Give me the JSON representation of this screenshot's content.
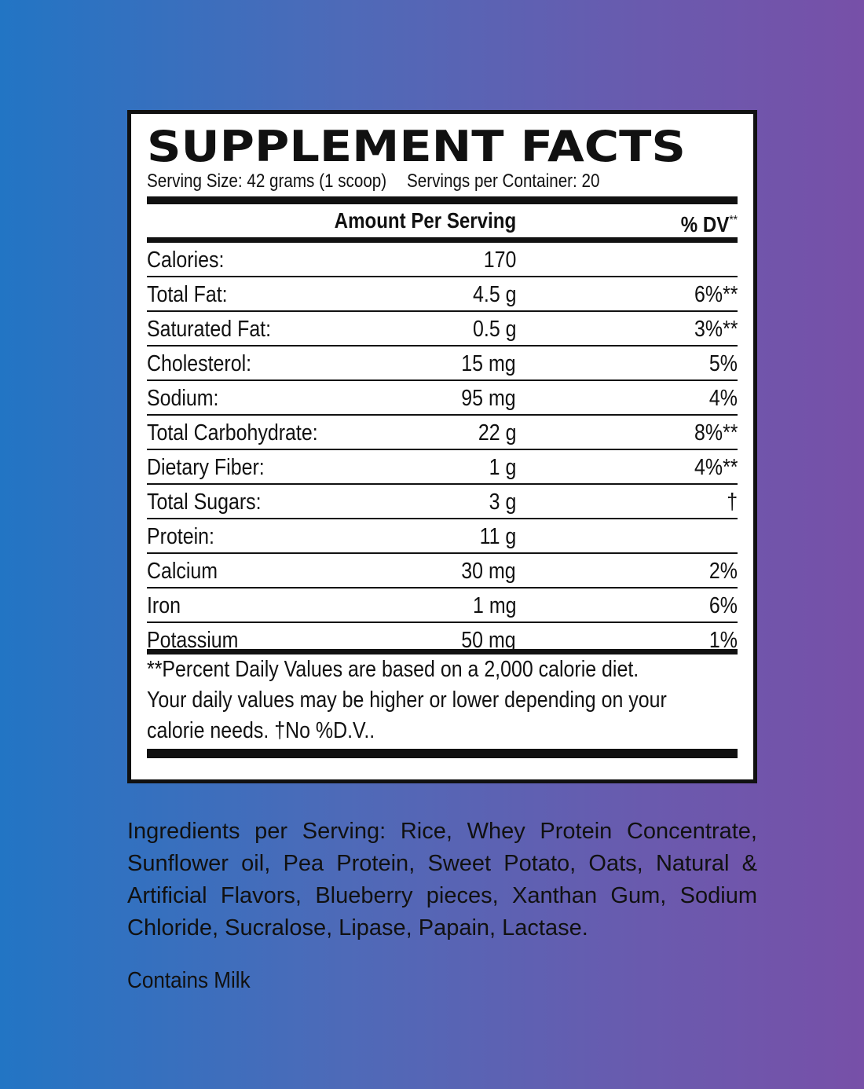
{
  "label": {
    "title": "SUPPLEMENT FACTS",
    "serving_size": "Serving Size: 42 grams (1 scoop)",
    "servings_per_container": "Servings per Container: 20",
    "header_amount": "Amount Per Serving",
    "header_dv": "% DV",
    "header_dv_mark": "**",
    "rows": [
      {
        "name": "Calories:",
        "amount": "170",
        "dv": ""
      },
      {
        "name": "Total Fat:",
        "amount": "4.5 g",
        "dv": "6%**"
      },
      {
        "name": "Saturated Fat:",
        "amount": "0.5 g",
        "dv": "3%**"
      },
      {
        "name": "Cholesterol:",
        "amount": "15 mg",
        "dv": "5%"
      },
      {
        "name": "Sodium:",
        "amount": "95 mg",
        "dv": "4%"
      },
      {
        "name": "Total Carbohydrate:",
        "amount": "22 g",
        "dv": "8%**"
      },
      {
        "name": "Dietary Fiber:",
        "amount": "1 g",
        "dv": "4%**"
      },
      {
        "name": "Total Sugars:",
        "amount": "3 g",
        "dv": "†"
      },
      {
        "name": "Protein:",
        "amount": "11 g",
        "dv": ""
      },
      {
        "name": "Calcium",
        "amount": "30 mg",
        "dv": "2%"
      },
      {
        "name": "Iron",
        "amount": "1 mg",
        "dv": "6%"
      },
      {
        "name": "Potassium",
        "amount": "50 mg",
        "dv": "1%"
      }
    ],
    "footnote_1": "**Percent Daily Values are based on a 2,000 calorie diet.",
    "footnote_2": "Your daily values may be higher or lower depending on your",
    "footnote_3": "calorie needs. †No %D.V.."
  },
  "ingredients": "Ingredients per Serving: Rice, Whey Protein Concentrate, Sunflower oil, Pea Protein, Sweet Potato, Oats, Natural & Artificial Flavors, Blueberry pieces, Xanthan Gum, Sodium Chloride, Sucralose, Lipase, Papain, Lactase.",
  "contains": "Contains Milk",
  "colors": {
    "gradient_left": "#2275c4",
    "gradient_right": "#7750a8",
    "label_background": "#ffffff",
    "ink": "#111111"
  }
}
